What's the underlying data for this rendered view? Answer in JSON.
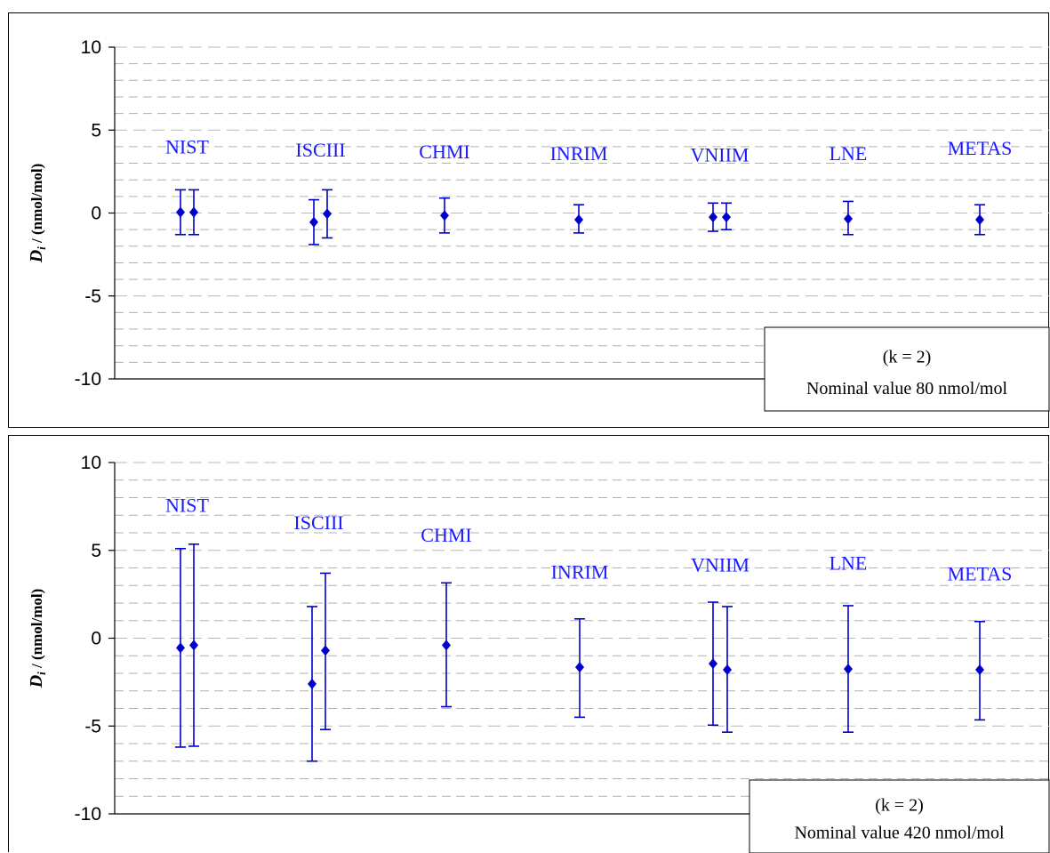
{
  "chart_data": [
    {
      "type": "scatter",
      "title": "",
      "xlabel": "",
      "ylabel": "D_i / (nmol/mol)",
      "ylim": [
        -10,
        10
      ],
      "yticks": [
        10,
        5,
        0,
        -5,
        -10
      ],
      "grid": "dashed horizontal",
      "legend_text": [
        "(k  = 2)",
        "Nominal value 80 nmol/mol"
      ],
      "legend_position": "bottom-right",
      "marker_color": "#0000cc",
      "label_color": "#1a1aff",
      "labs": [
        {
          "name": "NIST",
          "label_y": 3.6,
          "points": [
            {
              "y": 0.05,
              "lo": -1.3,
              "hi": 1.4
            },
            {
              "y": 0.05,
              "lo": -1.3,
              "hi": 1.4
            }
          ]
        },
        {
          "name": "ISCIII",
          "label_y": 3.4,
          "points": [
            {
              "y": -0.55,
              "lo": -1.9,
              "hi": 0.8
            },
            {
              "y": -0.05,
              "lo": -1.5,
              "hi": 1.4
            }
          ]
        },
        {
          "name": "CHMI",
          "label_y": 3.3,
          "points": [
            {
              "y": -0.15,
              "lo": -1.2,
              "hi": 0.9
            }
          ]
        },
        {
          "name": "INRIM",
          "label_y": 3.2,
          "points": [
            {
              "y": -0.4,
              "lo": -1.2,
              "hi": 0.5
            }
          ]
        },
        {
          "name": "VNIIM",
          "label_y": 3.1,
          "points": [
            {
              "y": -0.25,
              "lo": -1.1,
              "hi": 0.6
            },
            {
              "y": -0.25,
              "lo": -1.0,
              "hi": 0.6
            }
          ]
        },
        {
          "name": "LNE",
          "label_y": 3.2,
          "points": [
            {
              "y": -0.35,
              "lo": -1.3,
              "hi": 0.7
            }
          ]
        },
        {
          "name": "METAS",
          "label_y": 3.5,
          "points": [
            {
              "y": -0.4,
              "lo": -1.3,
              "hi": 0.5
            }
          ]
        }
      ]
    },
    {
      "type": "scatter",
      "title": "",
      "xlabel": "",
      "ylabel": "D_i / (nmol/mol)",
      "ylim": [
        -10,
        10
      ],
      "yticks": [
        10,
        5,
        0,
        -5,
        -10
      ],
      "grid": "dashed horizontal",
      "legend_text": [
        "(k  = 2)",
        "Nominal value 420 nmol/mol"
      ],
      "legend_position": "bottom-right",
      "marker_color": "#0000cc",
      "label_color": "#1a1aff",
      "labs": [
        {
          "name": "NIST",
          "label_y": 7.2,
          "points": [
            {
              "y": -0.55,
              "lo": -6.2,
              "hi": 5.1
            },
            {
              "y": -0.4,
              "lo": -6.15,
              "hi": 5.35
            }
          ]
        },
        {
          "name": "ISCIII",
          "label_y": 6.2,
          "points": [
            {
              "y": -2.6,
              "lo": -7.0,
              "hi": 1.8
            },
            {
              "y": -0.7,
              "lo": -5.2,
              "hi": 3.7
            }
          ]
        },
        {
          "name": "CHMI",
          "label_y": 5.5,
          "points": [
            {
              "y": -0.4,
              "lo": -3.9,
              "hi": 3.15
            }
          ]
        },
        {
          "name": "INRIM",
          "label_y": 3.4,
          "points": [
            {
              "y": -1.65,
              "lo": -4.5,
              "hi": 1.1
            }
          ]
        },
        {
          "name": "VNIIM",
          "label_y": 3.8,
          "points": [
            {
              "y": -1.45,
              "lo": -4.95,
              "hi": 2.05
            },
            {
              "y": -1.8,
              "lo": -5.35,
              "hi": 1.8
            }
          ]
        },
        {
          "name": "LNE",
          "label_y": 3.9,
          "points": [
            {
              "y": -1.75,
              "lo": -5.35,
              "hi": 1.85
            }
          ]
        },
        {
          "name": "METAS",
          "label_y": 3.3,
          "points": [
            {
              "y": -1.8,
              "lo": -4.65,
              "hi": 0.95
            }
          ]
        }
      ]
    }
  ]
}
